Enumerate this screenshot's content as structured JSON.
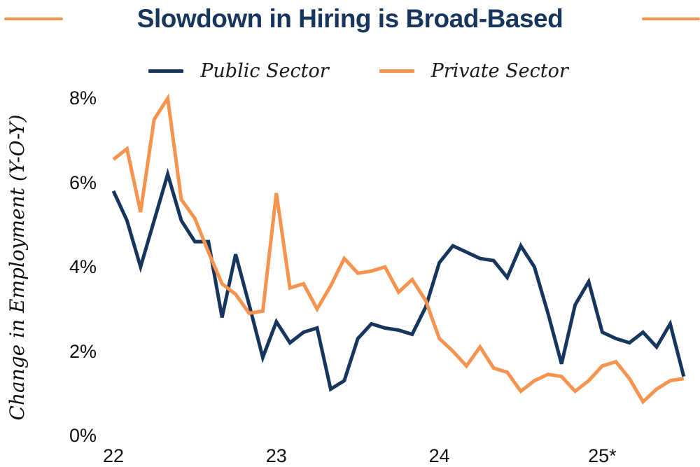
{
  "title": "Slowdown in Hiring is Broad-Based",
  "ylabel": "Change in Employment (Y-O-Y)",
  "colors": {
    "navy": "#17365D",
    "orange": "#F5934F",
    "title_text": "#17365D",
    "tick_text": "#111111"
  },
  "legend": [
    {
      "label": "Public Sector",
      "color": "#17365D"
    },
    {
      "label": "Private Sector",
      "color": "#F5934F"
    }
  ],
  "decorative_dashes": {
    "color": "#F5934F",
    "count": 2
  },
  "chart_data": {
    "type": "line",
    "title": "Slowdown in Hiring is Broad-Based",
    "xlabel": "",
    "ylabel": "Change in Employment (Y-O-Y)",
    "x_unit": "monthly, Jan 2022 - Jul 2025",
    "x_tick_labels": [
      "22",
      "23",
      "24",
      "25*"
    ],
    "x_tick_indices": [
      0,
      12,
      24,
      36
    ],
    "y_ticks": [
      "8%",
      "6%",
      "4%",
      "2%",
      "0%"
    ],
    "y_tick_values": [
      8,
      6,
      4,
      2,
      0
    ],
    "ylim": [
      0,
      8.3
    ],
    "grid": false,
    "legend_position": "top",
    "series": [
      {
        "name": "Public Sector",
        "color": "#17365D",
        "values": [
          5.8,
          5.1,
          4.0,
          5.1,
          6.2,
          5.1,
          4.6,
          4.6,
          2.8,
          4.3,
          3.1,
          1.85,
          2.7,
          2.2,
          2.45,
          2.55,
          1.1,
          1.3,
          2.3,
          2.65,
          2.55,
          2.5,
          2.4,
          3.05,
          4.1,
          4.5,
          4.35,
          4.2,
          4.15,
          3.75,
          4.5,
          4.0,
          2.9,
          1.7,
          3.1,
          3.65,
          2.45,
          2.3,
          2.2,
          2.45,
          2.1,
          2.65,
          1.4
        ]
      },
      {
        "name": "Private Sector",
        "color": "#F5934F",
        "values": [
          6.55,
          6.8,
          5.3,
          7.5,
          8.0,
          5.6,
          5.15,
          4.35,
          3.6,
          3.35,
          2.9,
          2.95,
          5.75,
          3.5,
          3.6,
          3.0,
          3.55,
          4.2,
          3.85,
          3.9,
          4.0,
          3.4,
          3.7,
          3.2,
          2.3,
          2.0,
          1.65,
          2.1,
          1.6,
          1.5,
          1.05,
          1.3,
          1.45,
          1.4,
          1.05,
          1.3,
          1.65,
          1.75,
          1.35,
          0.8,
          1.1,
          1.3,
          1.35
        ]
      }
    ]
  }
}
